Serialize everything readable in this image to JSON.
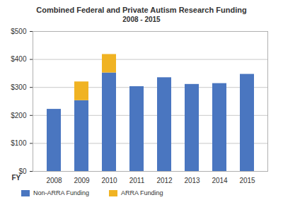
{
  "chart_data": {
    "type": "bar",
    "title": "Combined Federal and Private Autism Research Funding",
    "subtitle": "2008 - 2015",
    "xlabel": "FY",
    "categories": [
      "2008",
      "2009",
      "2010",
      "2011",
      "2012",
      "2013",
      "2014",
      "2015"
    ],
    "series": [
      {
        "name": "Non-ARRA Funding",
        "color": "#4a76c0",
        "values": [
          222,
          253,
          352,
          303,
          335,
          311,
          314,
          347
        ]
      },
      {
        "name": "ARRA Funding",
        "color": "#f0b323",
        "values": [
          null,
          67,
          66,
          null,
          null,
          null,
          null,
          null
        ]
      }
    ],
    "stacked": true,
    "ylim": [
      0,
      500
    ],
    "yticks": [
      {
        "value": 0,
        "label": "$0"
      },
      {
        "value": 100,
        "label": "$100"
      },
      {
        "value": 200,
        "label": "$200"
      },
      {
        "value": 300,
        "label": "$300"
      },
      {
        "value": 400,
        "label": "$400"
      },
      {
        "value": 500,
        "label": "$500"
      }
    ],
    "grid": true,
    "legend": "bottom-left"
  }
}
